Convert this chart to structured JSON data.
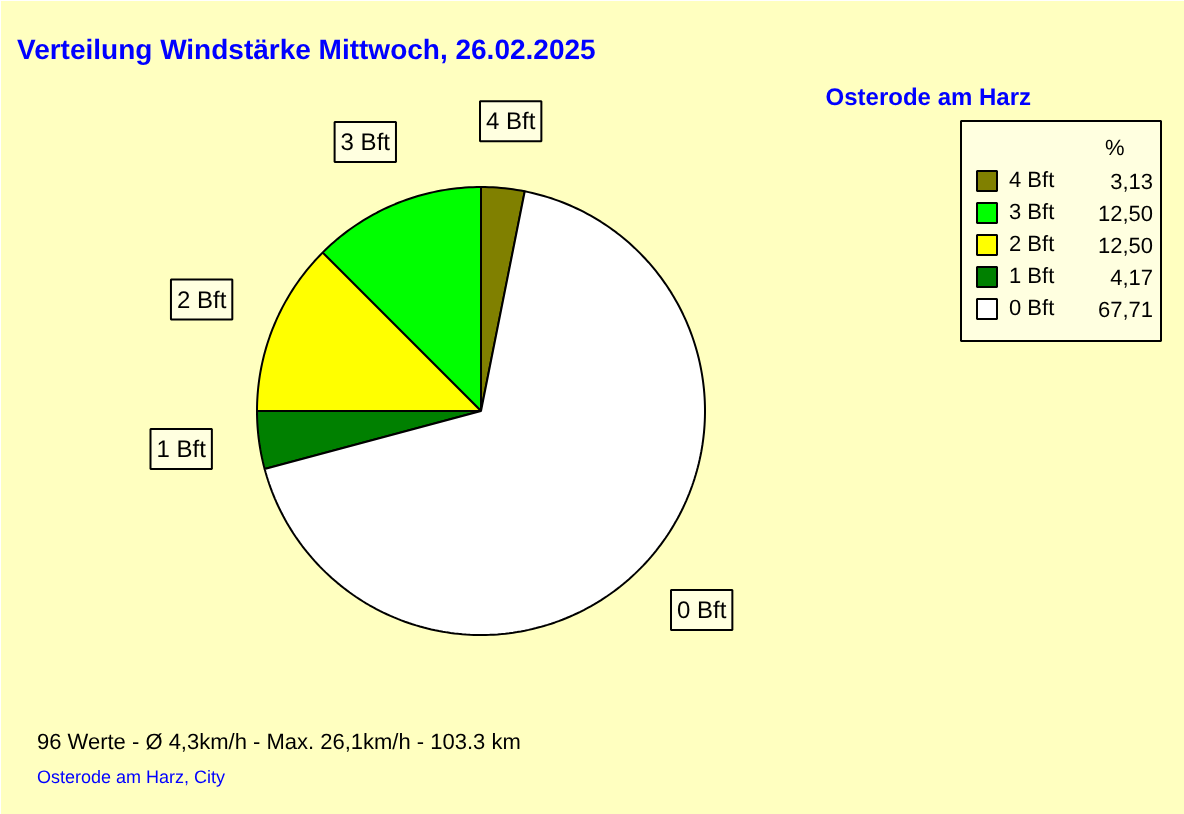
{
  "chart_data": {
    "type": "pie",
    "title": "Verteilung Windstärke  Mittwoch, 26.02.2025",
    "subtitle": "Osterode am Harz",
    "categories": [
      "4 Bft",
      "3 Bft",
      "2 Bft",
      "1 Bft",
      "0 Bft"
    ],
    "values": [
      3.13,
      12.5,
      12.5,
      4.17,
      67.71
    ],
    "value_labels": [
      "3,13",
      "12,50",
      "12,50",
      "4,17",
      "67,71"
    ],
    "colors": [
      "#808000",
      "#00ff00",
      "#ffff00",
      "#008000",
      "#ffffff"
    ],
    "legend_title": "%",
    "legend": "top right",
    "annotations": [
      "96 Werte   -   Ø 4,3km/h  -  Max. 26,1km/h   -   103.3 km",
      "Osterode am Harz, City"
    ]
  }
}
